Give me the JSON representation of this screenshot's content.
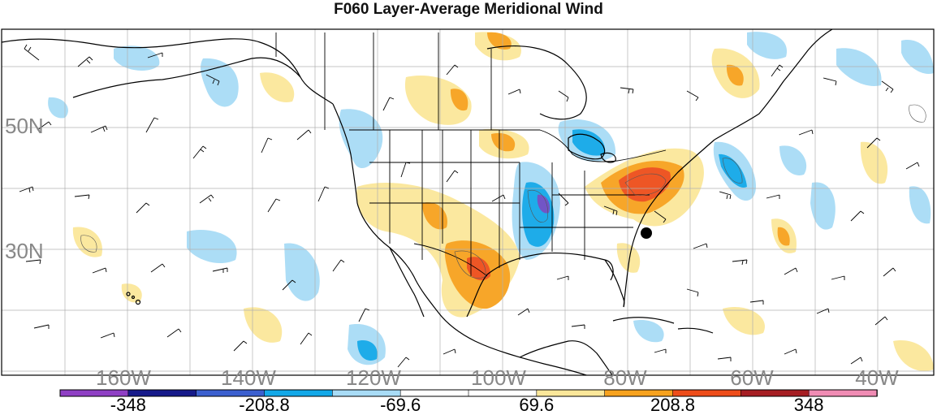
{
  "title": "F060 Layer-Average Meridional Wind",
  "lat_labels": [
    "50N",
    "30N"
  ],
  "lon_labels": [
    "160W",
    "140W",
    "120W",
    "100W",
    "80W",
    "60W",
    "40W"
  ],
  "colorbar": {
    "colors": [
      "#8f3fc4",
      "#161a8a",
      "#3b5fcf",
      "#12a8e8",
      "#a8dcf6",
      "#ffffff",
      "#ffffff",
      "#fbe79a",
      "#f7a21e",
      "#ee4d1a",
      "#a61e23",
      "#f08cb4"
    ],
    "tick_labels": [
      "-348",
      "-208.8",
      "-69.6",
      "69.6",
      "208.8",
      "348"
    ]
  },
  "marker": {
    "name": "black dot",
    "lon": -79.0,
    "lat": 31.5
  },
  "palette": {
    "light_blue": "#a8dcf6",
    "blue": "#12a8e8",
    "dark_blue": "#3b5fcf",
    "purple": "#6b4cc4",
    "yellow": "#fbe79a",
    "orange": "#f7a21e",
    "red": "#ee4d1a"
  }
}
